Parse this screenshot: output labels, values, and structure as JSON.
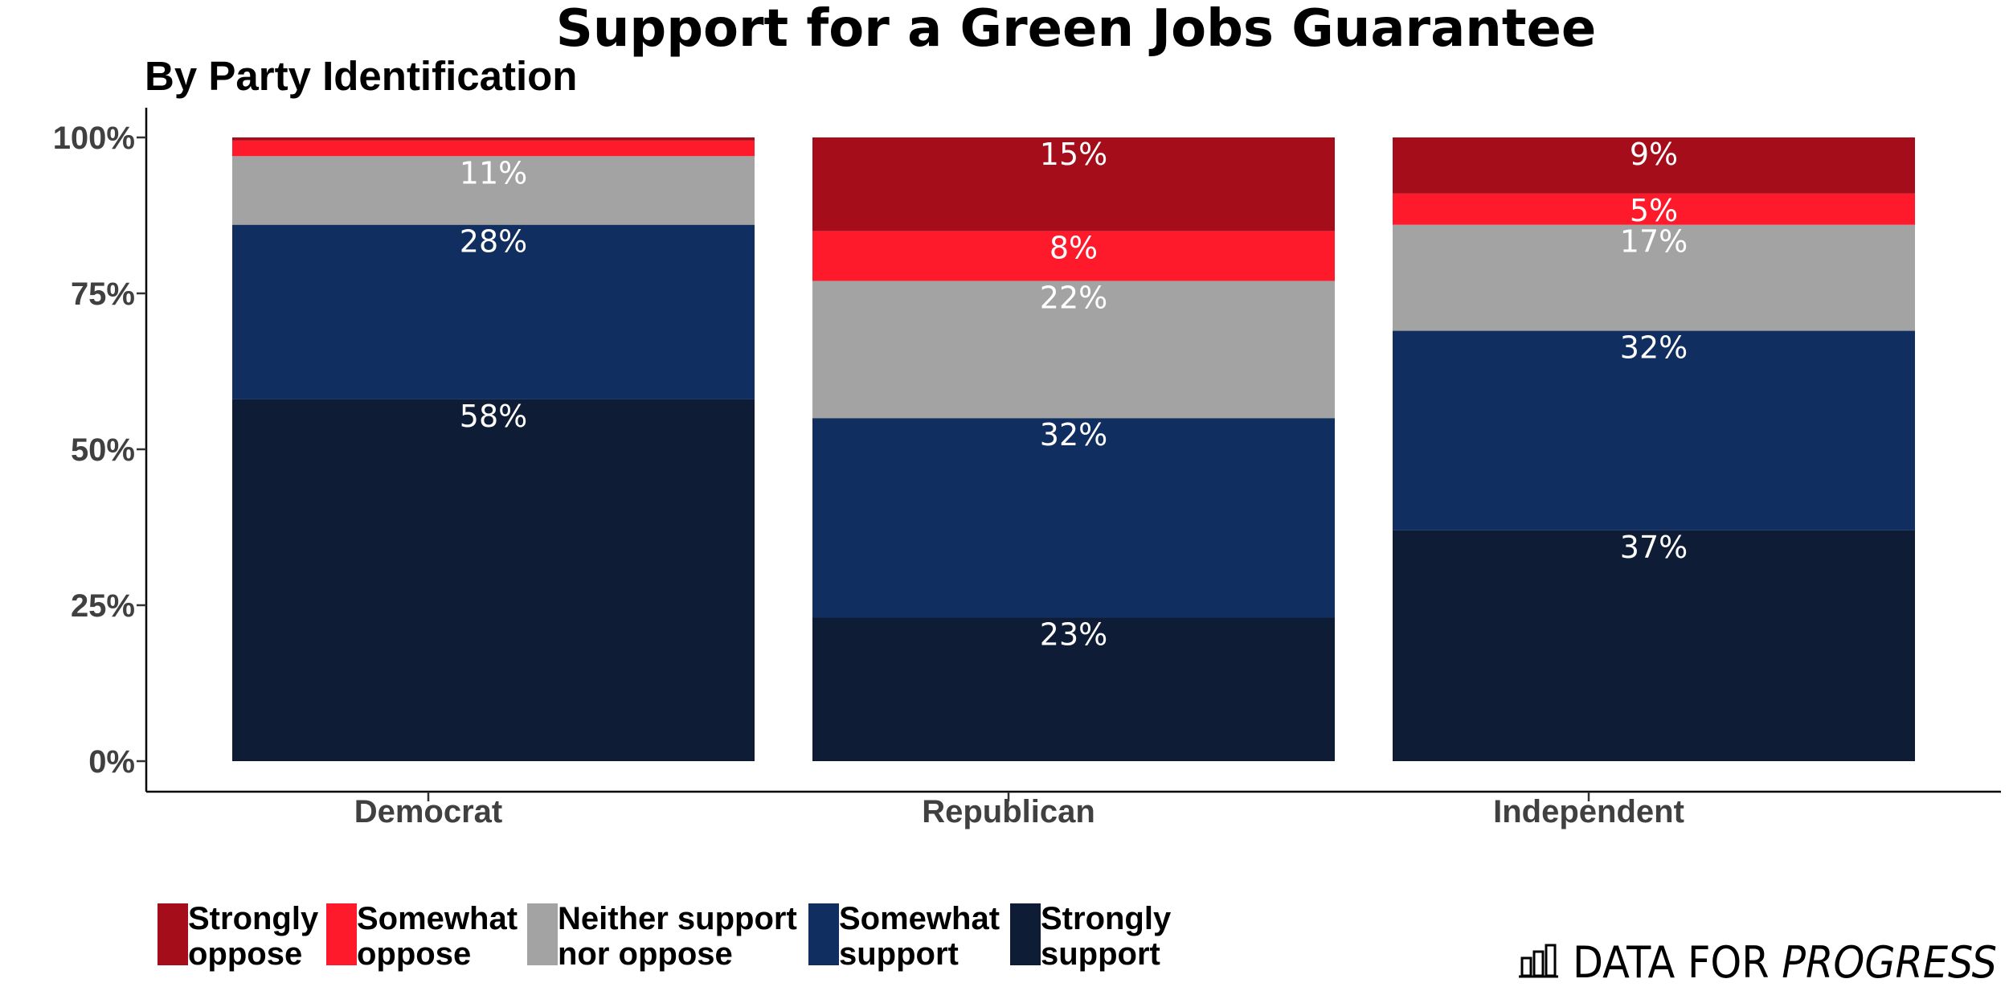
{
  "chart_data": {
    "type": "bar",
    "stacked": true,
    "title": "Support for a Green Jobs Guarantee",
    "subtitle": "By Party Identification",
    "xlabel": "",
    "ylabel": "",
    "ylim": [
      0,
      100
    ],
    "y_ticks": [
      "0%",
      "25%",
      "50%",
      "75%",
      "100%"
    ],
    "y_tick_values": [
      0,
      25,
      50,
      75,
      100
    ],
    "categories": [
      "Democrat",
      "Republican",
      "Independent"
    ],
    "series": [
      {
        "name": "Strongly support",
        "legend_lines": [
          "Strongly",
          "support"
        ],
        "color": "#0e1d35",
        "values": [
          58,
          23,
          37
        ],
        "labels": [
          "58%",
          "23%",
          "37%"
        ]
      },
      {
        "name": "Somewhat support",
        "legend_lines": [
          "Somewhat",
          "support"
        ],
        "color": "#112e61",
        "values": [
          28,
          32,
          32
        ],
        "labels": [
          "28%",
          "32%",
          "32%"
        ]
      },
      {
        "name": "Neither support nor oppose",
        "legend_lines": [
          "Neither support",
          "nor oppose"
        ],
        "color": "#a3a3a3",
        "values": [
          11,
          22,
          17
        ],
        "labels": [
          "11%",
          "22%",
          "17%"
        ]
      },
      {
        "name": "Somewhat oppose",
        "legend_lines": [
          "Somewhat",
          "oppose"
        ],
        "color": "#ff1a2b",
        "values": [
          2.5,
          8,
          5
        ],
        "labels": [
          "",
          "8%",
          "5%"
        ]
      },
      {
        "name": "Strongly oppose",
        "legend_lines": [
          "Strongly",
          "oppose"
        ],
        "color": "#a50d1a",
        "values": [
          0.5,
          15,
          9
        ],
        "labels": [
          "",
          "15%",
          "9%"
        ]
      }
    ],
    "legend_order": [
      "Strongly oppose",
      "Somewhat oppose",
      "Neither support nor oppose",
      "Somewhat support",
      "Strongly support"
    ],
    "legend_position": "bottom-left",
    "grid": false
  },
  "brand": {
    "name_regular": "DATA FOR ",
    "name_italic": "PROGRESS",
    "logo_icon": "bar-chart-icon"
  }
}
